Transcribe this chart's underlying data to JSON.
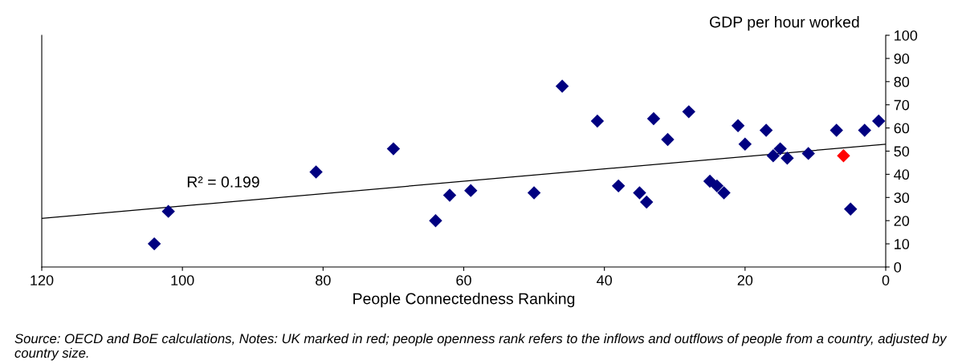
{
  "chart_data": {
    "type": "scatter",
    "ylabel": "GDP per hour worked",
    "xlabel": "People Connectedness Ranking",
    "xlim": [
      120,
      0
    ],
    "xticks": [
      120,
      100,
      80,
      60,
      40,
      20,
      0
    ],
    "ylim": [
      0,
      100
    ],
    "yticks": [
      0,
      10,
      20,
      30,
      40,
      50,
      60,
      70,
      80,
      90,
      100
    ],
    "grid": false,
    "marker": "diamond",
    "legend": false,
    "series": [
      {
        "color": "#000080",
        "x": [
          104,
          102,
          81,
          70,
          64,
          62,
          59,
          50,
          46,
          41,
          38,
          35,
          34,
          33,
          31,
          28,
          25,
          24,
          23,
          21,
          20,
          17,
          16,
          15,
          14,
          11,
          7,
          5,
          3,
          1
        ],
        "values": [
          10,
          24,
          41,
          51,
          20,
          31,
          33,
          32,
          78,
          63,
          35,
          32,
          28,
          64,
          55,
          67,
          37,
          35,
          32,
          61,
          53,
          59,
          48,
          51,
          47,
          49,
          59,
          25,
          59,
          63
        ]
      },
      {
        "color": "#ff0000",
        "x": [
          6
        ],
        "values": [
          48
        ]
      },
      {
        "type": "line",
        "color": "#000000",
        "marker": "none",
        "x": [
          120,
          0
        ],
        "values": [
          21,
          53
        ]
      }
    ],
    "annotations": [
      "R² = 0.199",
      "Source: OECD and BoE calculations, Notes: UK marked in red; people openness rank refers to the inflows and outflows of people from a country, adjusted by country size."
    ]
  }
}
